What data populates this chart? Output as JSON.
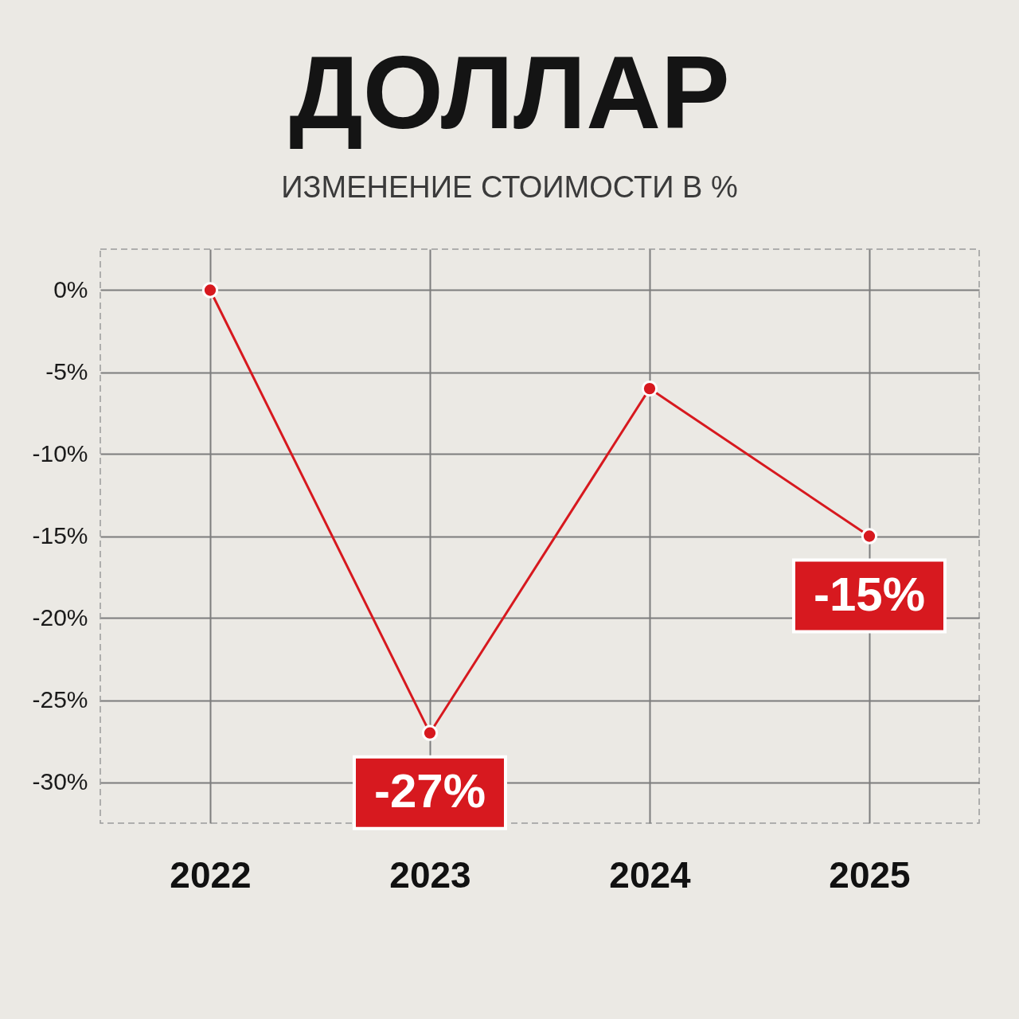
{
  "chart_data": {
    "type": "line",
    "title": "ДОЛЛАР",
    "subtitle": "ИЗМЕНЕНИЕ СТОИМОСТИ В %",
    "categories": [
      "2022",
      "2023",
      "2024",
      "2025"
    ],
    "values": [
      0,
      -27,
      -6,
      -15
    ],
    "color": "#d7191f",
    "value_labels": [
      null,
      "-27%",
      null,
      "-15%"
    ],
    "ylim": [
      -32.5,
      2.5
    ],
    "yticks": [
      {
        "value": 0,
        "label": "0%"
      },
      {
        "value": -5,
        "label": "-5%"
      },
      {
        "value": -10,
        "label": "-10%"
      },
      {
        "value": -15,
        "label": "-15%"
      },
      {
        "value": -20,
        "label": "-20%"
      },
      {
        "value": -25,
        "label": "-25%"
      },
      {
        "value": -30,
        "label": "-30%"
      }
    ],
    "grid": true,
    "marker": "circle",
    "line_style": "solid"
  }
}
